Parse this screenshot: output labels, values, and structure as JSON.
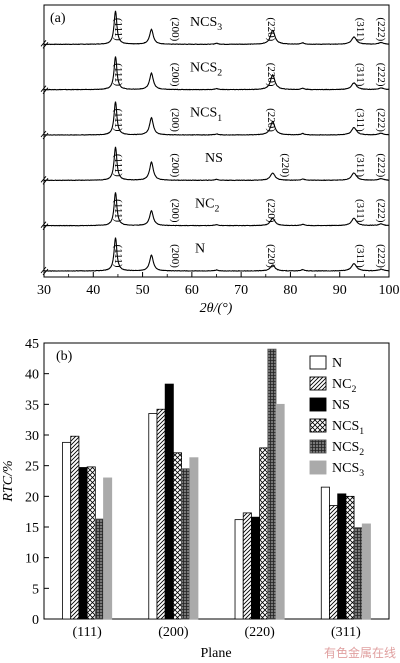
{
  "chart_data": [
    {
      "type": "line",
      "panel_label": "(a)",
      "xlabel": "2θ/(°)",
      "xlim": [
        30,
        100
      ],
      "x_ticks": [
        "30",
        "40",
        "50",
        "60",
        "70",
        "80",
        "90",
        "100"
      ],
      "peak_labels": [
        "(111)",
        "(200)",
        "(220)",
        "(311)",
        "(222)"
      ],
      "peak_positions": [
        44.5,
        51.8,
        76.4,
        92.9,
        98.4
      ],
      "series": [
        {
          "name": "NCS",
          "sub": "3",
          "peak_heights": [
            1.0,
            0.45,
            0.42,
            0.22,
            0.05
          ]
        },
        {
          "name": "NCS",
          "sub": "2",
          "peak_heights": [
            1.0,
            0.5,
            0.44,
            0.2,
            0.05
          ]
        },
        {
          "name": "NCS",
          "sub": "1",
          "peak_heights": [
            1.0,
            0.52,
            0.4,
            0.22,
            0.05
          ]
        },
        {
          "name": "NS",
          "sub": "",
          "peak_heights": [
            1.0,
            0.55,
            0.22,
            0.22,
            0.05
          ]
        },
        {
          "name": "NC",
          "sub": "2",
          "peak_heights": [
            1.0,
            0.45,
            0.22,
            0.22,
            0.05
          ]
        },
        {
          "name": "N",
          "sub": "",
          "peak_heights": [
            1.0,
            0.48,
            0.18,
            0.22,
            0.05
          ]
        }
      ]
    },
    {
      "type": "bar",
      "panel_label": "(b)",
      "categories": [
        "(111)",
        "(200)",
        "(220)",
        "(311)"
      ],
      "xlabel": "Plane",
      "ylabel": "RTC/%",
      "ylim": [
        0,
        45
      ],
      "y_ticks": [
        "0",
        "5",
        "10",
        "15",
        "20",
        "25",
        "30",
        "35",
        "40",
        "45"
      ],
      "legend_position": "top-right",
      "series": [
        {
          "name": "N",
          "sub": "",
          "values": [
            28.8,
            33.5,
            16.2,
            21.5
          ]
        },
        {
          "name": "NC",
          "sub": "2",
          "values": [
            29.8,
            34.2,
            17.3,
            18.5
          ]
        },
        {
          "name": "NS",
          "sub": "",
          "values": [
            24.7,
            38.3,
            16.6,
            20.4
          ]
        },
        {
          "name": "NCS",
          "sub": "1",
          "values": [
            24.8,
            27.1,
            27.9,
            20.0
          ]
        },
        {
          "name": "NCS",
          "sub": "2",
          "values": [
            16.3,
            24.5,
            44.0,
            14.9
          ]
        },
        {
          "name": "NCS",
          "sub": "3",
          "values": [
            23.0,
            26.3,
            35.0,
            15.5
          ]
        }
      ]
    }
  ],
  "watermark": "有色金属在线"
}
